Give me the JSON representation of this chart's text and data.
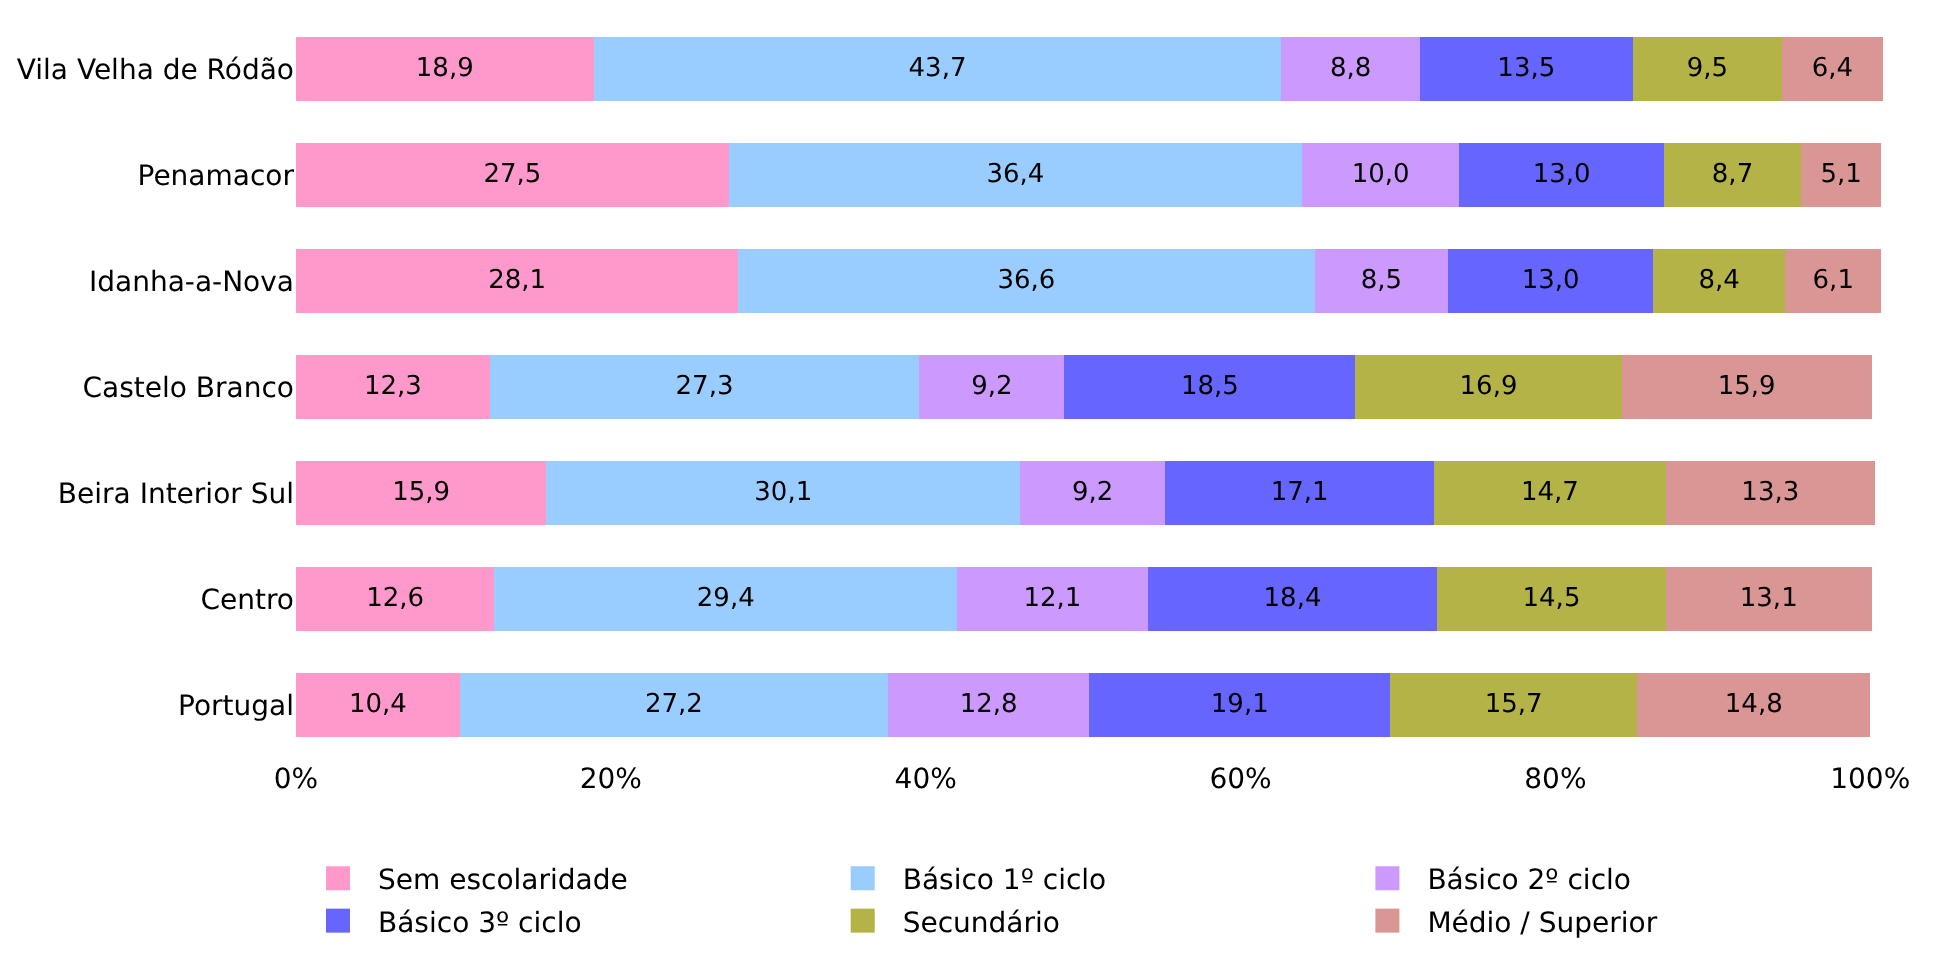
{
  "chart_data": {
    "type": "bar",
    "orientation": "horizontal",
    "stacked": true,
    "categories": [
      "Vila Velha de Ródão",
      "Penamacor",
      "Idanha-a-Nova",
      "Castelo Branco",
      "Beira Interior Sul",
      "Centro",
      "Portugal"
    ],
    "series": [
      {
        "name": "Sem escolaridade",
        "color": "#ff99cc",
        "values": [
          18.9,
          27.5,
          28.1,
          12.3,
          15.9,
          12.6,
          10.4
        ],
        "value_labels": [
          "18,9",
          "27,5",
          "28,1",
          "12,3",
          "15,9",
          "12,6",
          "10,4"
        ]
      },
      {
        "name": "Básico 1º ciclo",
        "color": "#99ccff",
        "values": [
          43.7,
          36.4,
          36.6,
          27.3,
          30.1,
          29.4,
          27.2
        ],
        "value_labels": [
          "43,7",
          "36,4",
          "36,6",
          "27,3",
          "30,1",
          "29,4",
          "27,2"
        ]
      },
      {
        "name": "Básico 2º ciclo",
        "color": "#cc99ff",
        "values": [
          8.8,
          10.0,
          8.5,
          9.2,
          9.2,
          12.1,
          12.8
        ],
        "value_labels": [
          "8,8",
          "10,0",
          "8,5",
          "9,2",
          "9,2",
          "12,1",
          "12,8"
        ]
      },
      {
        "name": "Básico 3º ciclo",
        "color": "#6666ff",
        "values": [
          13.5,
          13.0,
          13.0,
          18.5,
          17.1,
          18.4,
          19.1
        ],
        "value_labels": [
          "13,5",
          "13,0",
          "13,0",
          "18,5",
          "17,1",
          "18,4",
          "19,1"
        ]
      },
      {
        "name": "Secundário",
        "color": "#b3b347",
        "values": [
          9.5,
          8.7,
          8.4,
          16.9,
          14.7,
          14.5,
          15.7
        ],
        "value_labels": [
          "9,5",
          "8,7",
          "8,4",
          "16,9",
          "14,7",
          "14,5",
          "15,7"
        ]
      },
      {
        "name": "Médio / Superior",
        "color": "#da9694",
        "values": [
          6.4,
          5.1,
          6.1,
          15.9,
          13.3,
          13.1,
          14.8
        ],
        "value_labels": [
          "6,4",
          "5,1",
          "6,1",
          "15,9",
          "13,3",
          "13,1",
          "14,8"
        ]
      }
    ],
    "xlim": [
      0,
      101
    ],
    "xticks": [
      {
        "value": 0,
        "label": "0%"
      },
      {
        "value": 20,
        "label": "20%"
      },
      {
        "value": 40,
        "label": "40%"
      },
      {
        "value": 60,
        "label": "60%"
      },
      {
        "value": 80,
        "label": "80%"
      },
      {
        "value": 100,
        "label": "100%"
      }
    ],
    "grid": false,
    "legend": "bottom"
  }
}
